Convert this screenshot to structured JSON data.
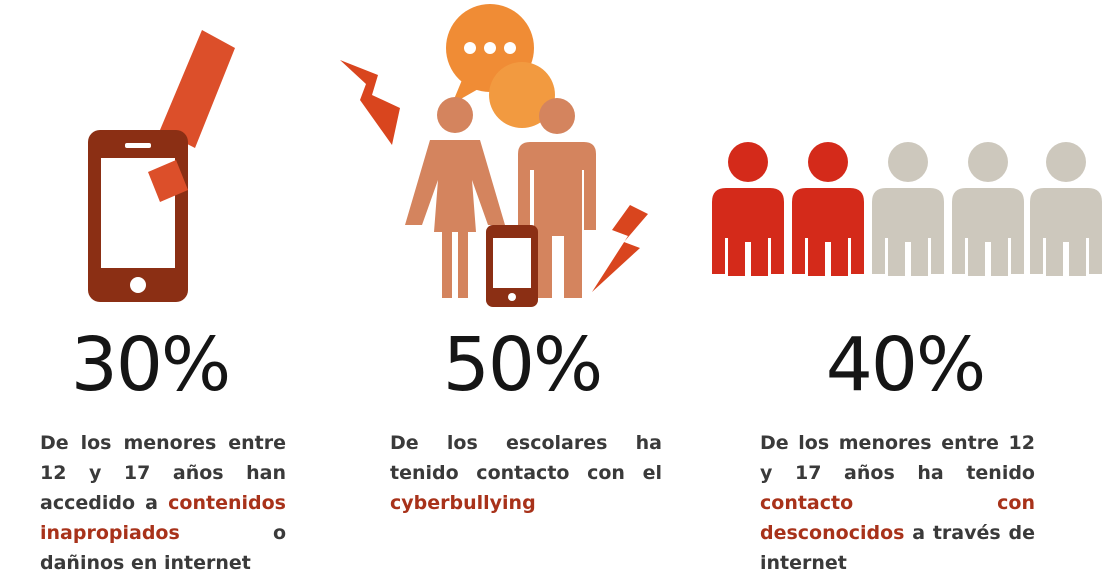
{
  "stats": [
    {
      "value": "30%",
      "before": "De los menores entre 12 y 17 años han accedido a",
      "highlight": "contenidos inapropiados",
      "after": "o dañinos en internet"
    },
    {
      "value": "50%",
      "before": "De los escolares ha tenido contacto con el",
      "highlight": "cyberbullying"
    },
    {
      "value": "40%",
      "before": "De los menores entre 12 y 17 años ha tenido",
      "highlight": "contacto con desconocidos",
      "after": "a través de internet"
    }
  ]
}
